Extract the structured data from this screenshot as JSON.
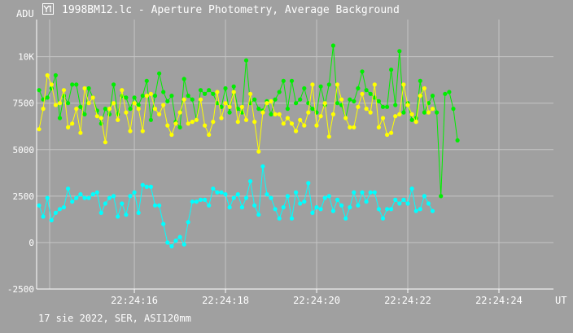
{
  "window": {
    "title": "1998BM12.lc - Aperture Photometry, Average Background",
    "icon": "app-logo-icon"
  },
  "footer": {
    "text": "17 sie 2022, SER, ASI120mm"
  },
  "colors": {
    "background": "#a0a0a0",
    "grid": "#c4c4c4",
    "axis": "#ffffff",
    "green_series": "#00ee00",
    "yellow_series": "#ffff00",
    "cyan_series": "#00ffff"
  },
  "chart_data": {
    "type": "line",
    "ylabel": "ADU",
    "xlabel": "UT",
    "ylim": [
      -2500,
      12000
    ],
    "xlim": [
      0,
      124
    ],
    "grid": true,
    "y_ticks": [
      {
        "value": -2500,
        "label": "-2500"
      },
      {
        "value": 0,
        "label": "0"
      },
      {
        "value": 2500,
        "label": "2500"
      },
      {
        "value": 5000,
        "label": "5000"
      },
      {
        "value": 7500,
        "label": "7500"
      },
      {
        "value": 10000,
        "label": "10K"
      }
    ],
    "x_ticks": [
      {
        "value": 23,
        "label": "22:24:16"
      },
      {
        "value": 45,
        "label": "22:24:18"
      },
      {
        "value": 67,
        "label": "22:24:20"
      },
      {
        "value": 89,
        "label": "22:24:22"
      },
      {
        "value": 111,
        "label": "22:24:24"
      }
    ],
    "series": [
      {
        "color": "#00ee00",
        "values": [
          8200,
          7700,
          7800,
          8300,
          9000,
          6700,
          7900,
          7500,
          8500,
          8500,
          7300,
          6900,
          8300,
          7800,
          7100,
          6400,
          7200,
          6900,
          8500,
          6900,
          7900,
          7800,
          7200,
          7800,
          7400,
          7900,
          8700,
          6600,
          7900,
          9100,
          8100,
          7600,
          7900,
          6500,
          6200,
          8800,
          7900,
          7700,
          6600,
          8200,
          8000,
          8200,
          8000,
          7500,
          7300,
          8300,
          7000,
          8400,
          7200,
          7000,
          9800,
          7500,
          7700,
          7200,
          7100,
          7600,
          6900,
          7700,
          8100,
          8700,
          7200,
          8700,
          7500,
          7700,
          8300,
          7500,
          7200,
          7000,
          8400,
          7400,
          8500,
          10600,
          7500,
          7400,
          6700,
          7700,
          7600,
          8300,
          9200,
          8200,
          8000,
          7800,
          7600,
          7300,
          7300,
          9300,
          7400,
          10300,
          7000,
          7500,
          6600,
          6700,
          8700,
          7000,
          7500,
          7900,
          7000,
          2500,
          8000,
          8100,
          7200,
          5500
        ]
      },
      {
        "color": "#ffff00",
        "values": [
          6100,
          7200,
          9000,
          8500,
          7400,
          7500,
          8200,
          6200,
          6400,
          7200,
          5900,
          8300,
          7500,
          7800,
          6800,
          6700,
          5400,
          7200,
          7500,
          6600,
          8200,
          7000,
          6000,
          7500,
          7200,
          6000,
          7900,
          8000,
          7200,
          6900,
          7400,
          6300,
          5800,
          6400,
          7000,
          7700,
          6400,
          6500,
          6600,
          7700,
          6300,
          5800,
          6500,
          8100,
          6700,
          7500,
          7300,
          8100,
          6500,
          7300,
          6600,
          8000,
          6500,
          4900,
          7000,
          7500,
          7600,
          6900,
          6900,
          6400,
          6700,
          6400,
          6000,
          6600,
          6300,
          7000,
          8500,
          6300,
          6800,
          7500,
          5700,
          6900,
          8500,
          7700,
          6700,
          6200,
          6200,
          7300,
          8000,
          7200,
          7000,
          8500,
          6200,
          6700,
          5800,
          5900,
          6800,
          6900,
          8500,
          7400,
          6900,
          6500,
          7900,
          8300,
          7000,
          7200
        ]
      },
      {
        "color": "#00ffff",
        "values": [
          2000,
          1400,
          2400,
          1200,
          1600,
          1800,
          1900,
          2900,
          2200,
          2400,
          2600,
          2400,
          2400,
          2600,
          2700,
          1600,
          2100,
          2400,
          2500,
          1400,
          2100,
          1500,
          2500,
          2700,
          1600,
          3100,
          3000,
          3000,
          2000,
          2000,
          1000,
          0,
          -200,
          100,
          300,
          -100,
          1100,
          2200,
          2200,
          2300,
          2300,
          2000,
          2900,
          2700,
          2700,
          2600,
          1900,
          2400,
          2600,
          1900,
          2400,
          3300,
          2000,
          1500,
          4100,
          2600,
          2400,
          1800,
          1300,
          1900,
          2500,
          1300,
          2700,
          2100,
          2200,
          3200,
          1600,
          1900,
          1800,
          2400,
          2500,
          1700,
          2300,
          2000,
          1300,
          1900,
          2700,
          2000,
          2700,
          2200,
          2700,
          2700,
          1800,
          1300,
          1800,
          1800,
          2300,
          2100,
          2300,
          2100,
          2900,
          1700,
          1800,
          2500,
          2100,
          1700
        ]
      }
    ]
  }
}
